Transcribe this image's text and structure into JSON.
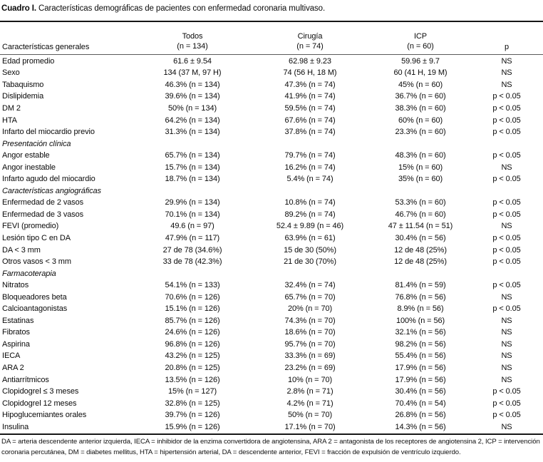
{
  "title": {
    "label": "Cuadro I.",
    "text": " Características demográficas de pacientes con enfermedad coronaria multivaso."
  },
  "table": {
    "row_header": "Características generales",
    "columns": [
      {
        "name": "Todos",
        "n": "(n = 134)"
      },
      {
        "name": "Cirugía",
        "n": "(n = 74)"
      },
      {
        "name": "ICP",
        "n": "(n = 60)"
      }
    ],
    "p_header": "p",
    "rows": [
      {
        "label": "Edad promedio",
        "todos": "61.6 ± 9.54",
        "cirugia": "62.98 ± 9.23",
        "icp": "59.96 ± 9.7",
        "p": "NS"
      },
      {
        "label": "Sexo",
        "todos": "134 (37 M, 97 H)",
        "cirugia": "74 (56 H, 18 M)",
        "icp": "60 (41 H, 19 M)",
        "p": "NS"
      },
      {
        "label": "Tabaquismo",
        "todos": "46.3% (n = 134)",
        "cirugia": "47.3% (n = 74)",
        "icp": "45% (n = 60)",
        "p": "NS"
      },
      {
        "label": "Dislipidemia",
        "todos": "39.6% (n = 134)",
        "cirugia": "41.9% (n = 74)",
        "icp": "36.7% (n = 60)",
        "p": "p < 0.05"
      },
      {
        "label": "DM 2",
        "todos": "50% (n = 134)",
        "cirugia": "59.5% (n = 74)",
        "icp": "38.3% (n = 60)",
        "p": "p < 0.05"
      },
      {
        "label": "HTA",
        "todos": "64.2% (n = 134)",
        "cirugia": "67.6% (n = 74)",
        "icp": "60% (n = 60)",
        "p": "p < 0.05"
      },
      {
        "label": "Infarto del miocardio previo",
        "todos": "31.3% (n = 134)",
        "cirugia": "37.8% (n = 74)",
        "icp": "23.3% (n = 60)",
        "p": "p < 0.05"
      },
      {
        "label": "Presentación clínica",
        "section": true
      },
      {
        "label": "Angor estable",
        "todos": "65.7% (n = 134)",
        "cirugia": "79.7% (n = 74)",
        "icp": "48.3% (n = 60)",
        "p": "p < 0.05"
      },
      {
        "label": "Angor inestable",
        "todos": "15.7% (n = 134)",
        "cirugia": "16.2% (n = 74)",
        "icp": "15% (n = 60)",
        "p": "NS"
      },
      {
        "label": "Infarto agudo del miocardio",
        "todos": "18.7% (n = 134)",
        "cirugia": "5.4% (n = 74)",
        "icp": "35% (n = 60)",
        "p": "p < 0.05"
      },
      {
        "label": "Características angiográficas",
        "section": true
      },
      {
        "label": "Enfermedad de 2 vasos",
        "todos": "29.9% (n = 134)",
        "cirugia": "10.8% (n = 74)",
        "icp": "53.3% (n = 60)",
        "p": "p < 0.05"
      },
      {
        "label": "Enfermedad de 3 vasos",
        "todos": "70.1% (n = 134)",
        "cirugia": "89.2% (n = 74)",
        "icp": "46.7% (n = 60)",
        "p": "p < 0.05"
      },
      {
        "label": "FEVI (promedio)",
        "todos": "49.6 (n = 97)",
        "cirugia": "52.4 ± 9.89 (n = 46)",
        "icp": "47 ± 11.54 (n = 51)",
        "p": "NS"
      },
      {
        "label": "Lesión tipo C en DA",
        "todos": "47.9% (n = 117)",
        "cirugia": "63.9% (n = 61)",
        "icp": "30.4% (n = 56)",
        "p": "p < 0.05"
      },
      {
        "label": "DA < 3 mm",
        "todos": "27 de 78 (34.6%)",
        "cirugia": "15 de 30 (50%)",
        "icp": "12 de 48 (25%)",
        "p": "p < 0.05"
      },
      {
        "label": "Otros vasos < 3 mm",
        "todos": "33 de 78 (42.3%)",
        "cirugia": "21 de 30 (70%)",
        "icp": "12 de 48 (25%)",
        "p": "p < 0.05"
      },
      {
        "label": "Farmacoterapia",
        "section": true
      },
      {
        "label": "Nitratos",
        "todos": "54.1% (n = 133)",
        "cirugia": "32.4% (n = 74)",
        "icp": "81.4% (n = 59)",
        "p": "p < 0.05"
      },
      {
        "label": "Bloqueadores beta",
        "todos": "70.6% (n = 126)",
        "cirugia": "65.7% (n = 70)",
        "icp": "76.8% (n = 56)",
        "p": "NS"
      },
      {
        "label": "Calcioantagonistas",
        "todos": "15.1% (n = 126)",
        "cirugia": "20% (n = 70)",
        "icp": "8.9% (n = 56)",
        "p": "p < 0.05"
      },
      {
        "label": "Estatinas",
        "todos": "85.7% (n = 126)",
        "cirugia": "74.3% (n = 70)",
        "icp": "100% (n = 56)",
        "p": "NS"
      },
      {
        "label": "Fibratos",
        "todos": "24.6% (n = 126)",
        "cirugia": "18.6% (n = 70)",
        "icp": "32.1% (n = 56)",
        "p": "NS"
      },
      {
        "label": "Aspirina",
        "todos": "96.8% (n = 126)",
        "cirugia": "95.7% (n = 70)",
        "icp": "98.2% (n = 56)",
        "p": "NS"
      },
      {
        "label": "IECA",
        "todos": "43.2% (n = 125)",
        "cirugia": "33.3% (n = 69)",
        "icp": "55.4% (n = 56)",
        "p": "NS"
      },
      {
        "label": "ARA 2",
        "todos": "20.8% (n = 125)",
        "cirugia": "23.2% (n = 69)",
        "icp": "17.9% (n = 56)",
        "p": "NS"
      },
      {
        "label": "Antiarrítmicos",
        "todos": "13.5% (n = 126)",
        "cirugia": "10% (n = 70)",
        "icp": "17.9% (n = 56)",
        "p": "NS"
      },
      {
        "label": "Clopidogrel ≤ 3 meses",
        "todos": "15% (n = 127)",
        "cirugia": "2.8% (n = 71)",
        "icp": "30.4% (n = 56)",
        "p": "p < 0.05"
      },
      {
        "label": "Clopidogrel 12 meses",
        "todos": "32.8% (n = 125)",
        "cirugia": "4.2% (n = 71)",
        "icp": "70.4% (n = 54)",
        "p": "p < 0.05"
      },
      {
        "label": "Hipoglucemiantes orales",
        "todos": "39.7% (n = 126)",
        "cirugia": "50% (n = 70)",
        "icp": "26.8% (n = 56)",
        "p": "p < 0.05"
      },
      {
        "label": "Insulina",
        "todos": "15.9% (n = 126)",
        "cirugia": "17.1% (n = 70)",
        "icp": "14.3% (n = 56)",
        "p": "NS"
      }
    ]
  },
  "footnote": "DA = arteria descendente anterior izquierda, IECA = inhibidor de la enzima convertidora de angiotensina, ARA 2 = antagonista de los receptores de angiotensina 2, ICP = intervención coronaria percutánea, DM = diabetes mellitus, HTA = hipertensión arterial, DA = descendente anterior, FEVI = fracción de expulsión de ventrículo izquierdo.",
  "colors": {
    "text": "#0a0a0a",
    "rule": "#161616"
  }
}
